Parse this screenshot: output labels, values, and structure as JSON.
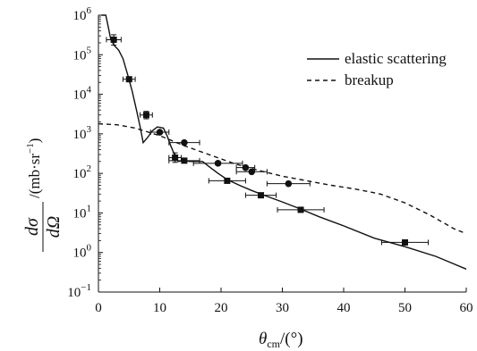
{
  "chart_data": {
    "type": "line",
    "x_ticks": [
      "0",
      "10",
      "20",
      "30",
      "40",
      "50",
      "60"
    ],
    "x_tick_values": [
      0,
      10,
      20,
      30,
      40,
      50,
      60
    ],
    "y_scale": "log",
    "xlim": [
      0,
      60
    ],
    "ylim": [
      0.1,
      1000000
    ],
    "y_ticks": [
      {
        "base": "10",
        "exp": "6",
        "value": 1000000
      },
      {
        "base": "10",
        "exp": "5",
        "value": 100000
      },
      {
        "base": "10",
        "exp": "4",
        "value": 10000
      },
      {
        "base": "10",
        "exp": "3",
        "value": 1000
      },
      {
        "base": "10",
        "exp": "2",
        "value": 100
      },
      {
        "base": "10",
        "exp": "1",
        "value": 10
      },
      {
        "base": "10",
        "exp": "0",
        "value": 1
      },
      {
        "base": "10",
        "exp": "−1",
        "value": 0.1
      }
    ],
    "xlabel": {
      "main": "θ",
      "sub": "cm",
      "rest": "/(°)"
    },
    "ylabel": {
      "num": "dσ",
      "den": "dΩ",
      "unit": "/(mb·sr",
      "unit_exp": "−1",
      "unit_close": ")"
    },
    "legend_position": "top-right",
    "grid": false,
    "series": [
      {
        "name": "elastic scattering",
        "style": "solid",
        "color": "#111111",
        "x": [
          0.5,
          1.2,
          1.6,
          2.0,
          2.6,
          3.3,
          4.0,
          4.8,
          5.5,
          6.2,
          6.8,
          7.3,
          8.0,
          8.8,
          9.6,
          10.6,
          11.2,
          11.8,
          12.4,
          13.0,
          14.0,
          15.0,
          16.0,
          17.0,
          18.0,
          19.5,
          21.0,
          23.0,
          25.0,
          27.0,
          30.0,
          33.0,
          36.0,
          40.0,
          45.0,
          50.0,
          55.0,
          60.0
        ],
        "y": [
          1000000,
          1000000,
          500000,
          250000,
          170000,
          130000,
          80000,
          30000,
          12000,
          4000,
          1500,
          600,
          800,
          1200,
          1500,
          1400,
          900,
          500,
          300,
          200,
          210,
          200,
          200,
          200,
          150,
          100,
          70,
          50,
          37,
          28,
          19,
          12.5,
          8,
          4.7,
          2.3,
          1.4,
          0.8,
          0.38
        ]
      },
      {
        "name": "breakup",
        "style": "dashed",
        "color": "#111111",
        "x": [
          0,
          3,
          6,
          10,
          14,
          18,
          22,
          26,
          30,
          34,
          38,
          42,
          46,
          50,
          54,
          58,
          60
        ],
        "y": [
          1800,
          1700,
          1400,
          900,
          500,
          300,
          180,
          120,
          85,
          65,
          50,
          40,
          30,
          18,
          9,
          4,
          3
        ]
      },
      {
        "name": "",
        "style": "square-markers",
        "color": "#111111",
        "x": [
          2.5,
          5.0,
          7.8,
          12.5,
          14.0,
          21.0,
          26.5,
          33.0,
          50.0
        ],
        "y": [
          240000,
          24000,
          3000,
          250,
          210,
          65,
          28,
          12,
          1.8
        ],
        "xerr": [
          1.2,
          1.0,
          1.0,
          1.0,
          2.5,
          3.0,
          2.5,
          3.8,
          3.8
        ],
        "yerr_lo": [
          65000,
          0,
          600,
          60,
          0,
          0,
          0,
          0,
          0
        ],
        "yerr_hi": [
          80000,
          0,
          700,
          80,
          0,
          0,
          0,
          0,
          0
        ]
      },
      {
        "name": "",
        "style": "circle-markers",
        "color": "#111111",
        "x": [
          10.0,
          14.0,
          19.5,
          24.0,
          25.0,
          31.0
        ],
        "y": [
          1100,
          600,
          180,
          140,
          110,
          55
        ],
        "xerr": [
          1.5,
          2.5,
          4.0,
          1.5,
          2.5,
          3.5
        ],
        "yerr_lo": [
          0,
          0,
          0,
          0,
          0,
          0
        ],
        "yerr_hi": [
          0,
          0,
          0,
          0,
          0,
          0
        ]
      }
    ]
  }
}
